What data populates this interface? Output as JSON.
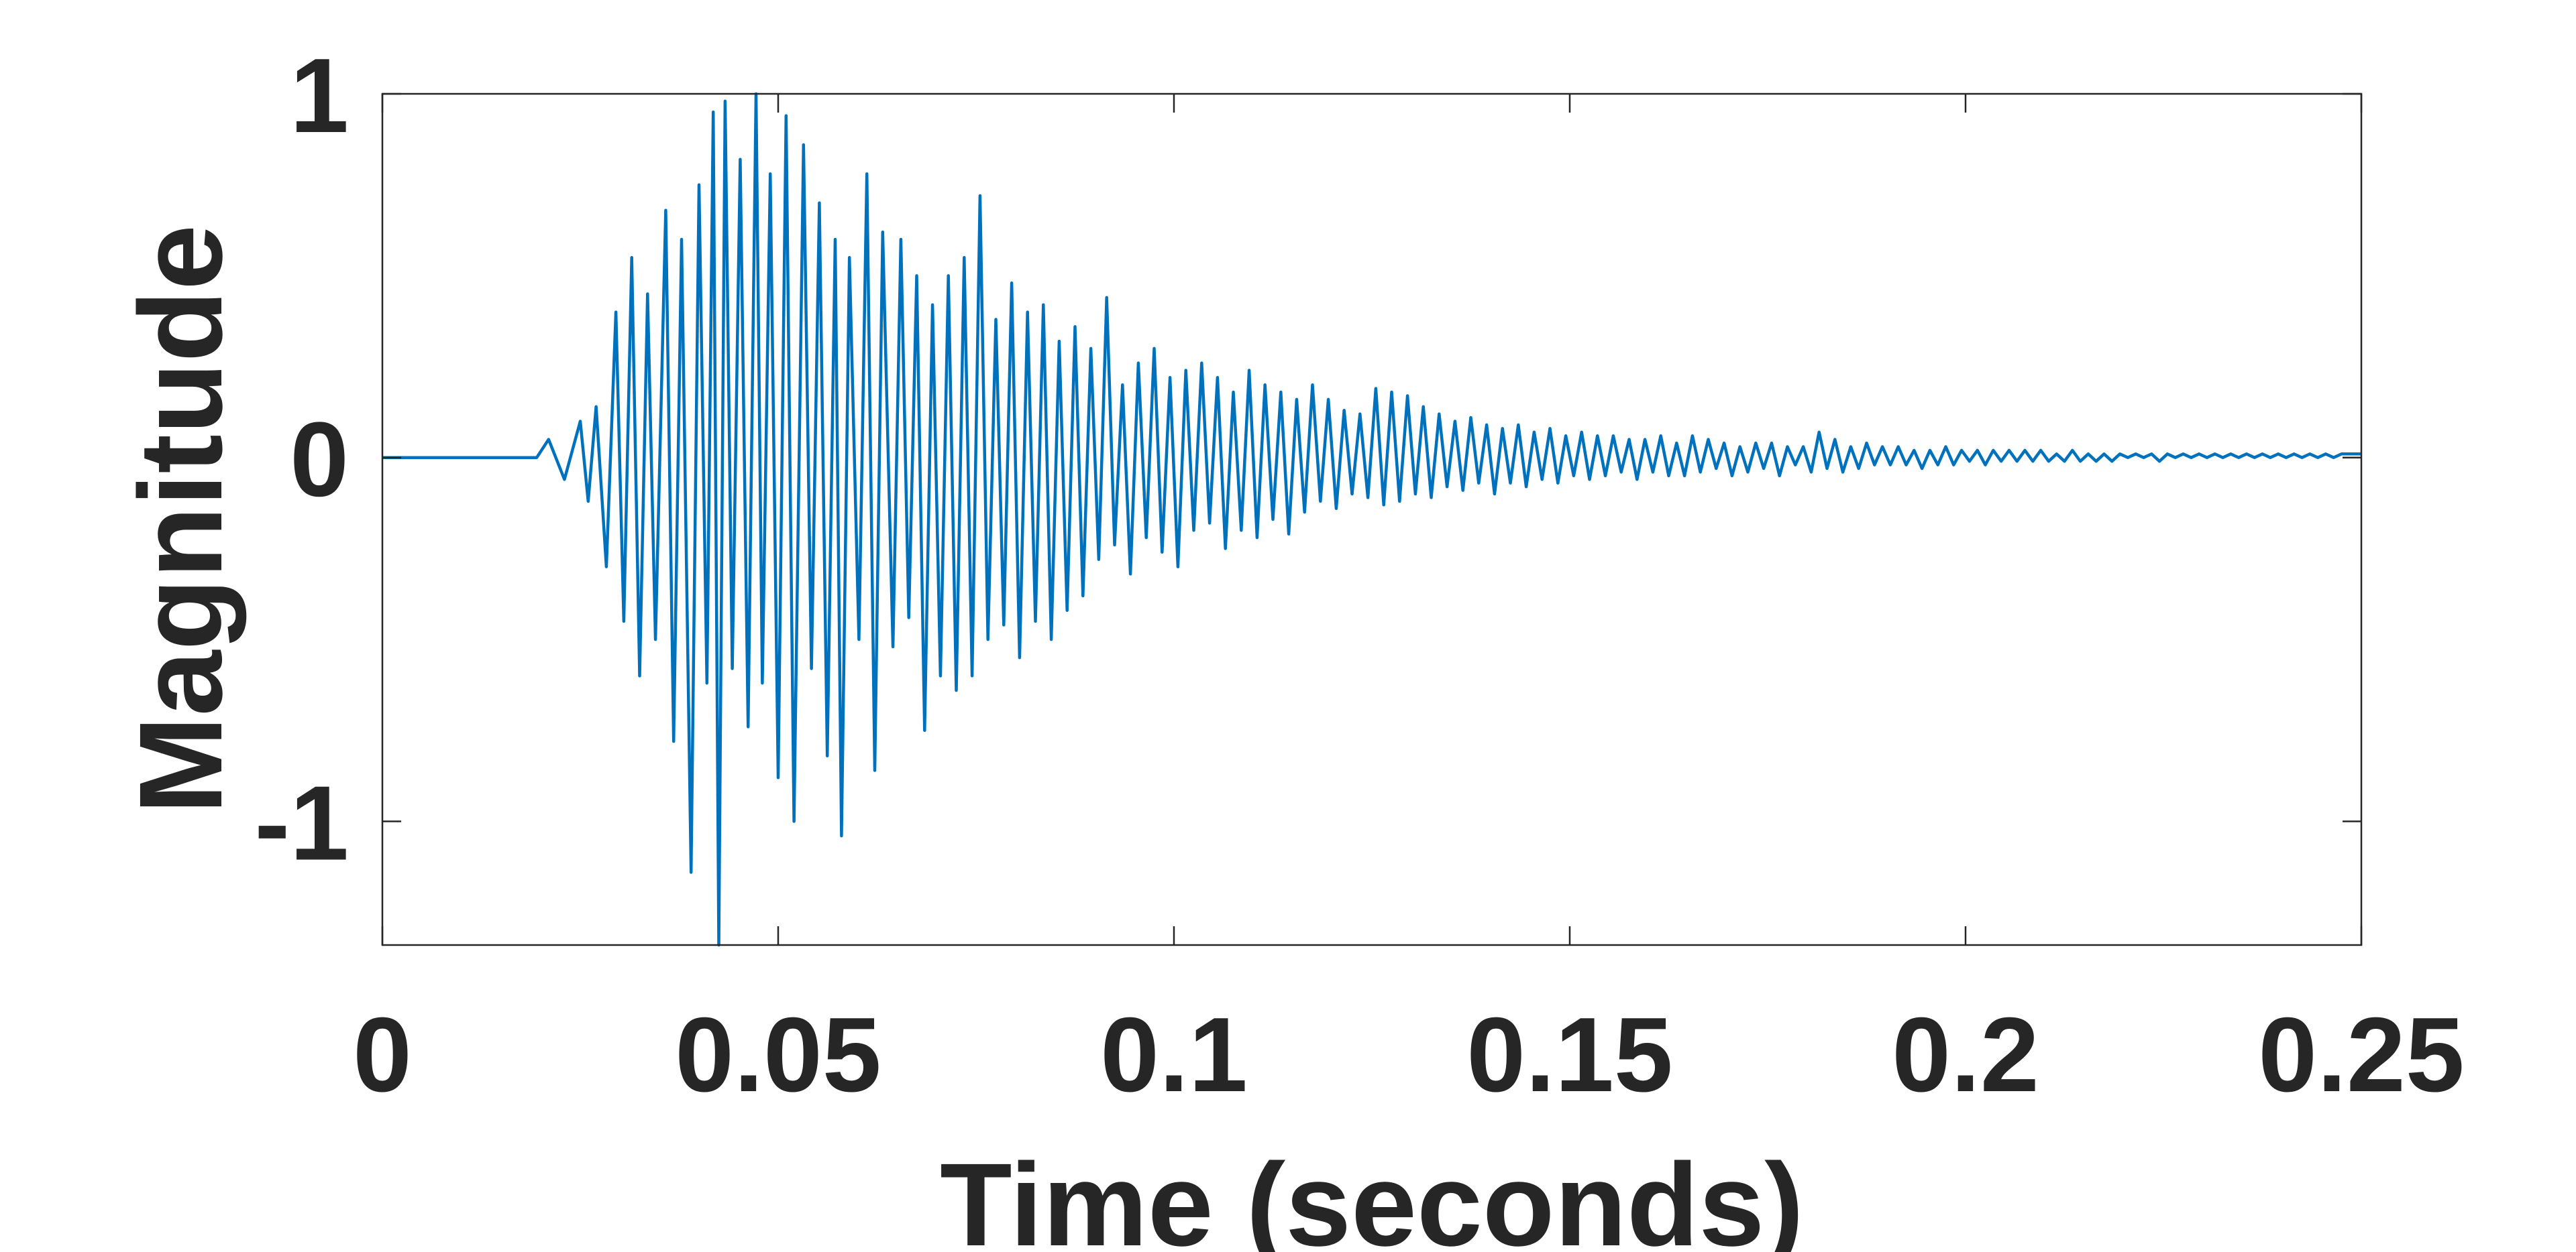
{
  "chart_data": {
    "type": "line",
    "title": "",
    "xlabel": "Time (seconds)",
    "ylabel": "Magnitude",
    "xlim": [
      0,
      0.25
    ],
    "ylim": [
      -1.34,
      1
    ],
    "grid": false,
    "legend": "none",
    "line_color": "#0072BD",
    "axis_color": "#262626",
    "box_color": "#262626",
    "x_ticks": [
      {
        "value": 0,
        "label": "0"
      },
      {
        "value": 0.05,
        "label": "0.05"
      },
      {
        "value": 0.1,
        "label": "0.1"
      },
      {
        "value": 0.15,
        "label": "0.15"
      },
      {
        "value": 0.2,
        "label": "0.2"
      },
      {
        "value": 0.25,
        "label": "0.25"
      }
    ],
    "y_ticks": [
      {
        "value": 1,
        "label": "1"
      },
      {
        "value": 0,
        "label": "0"
      },
      {
        "value": -1,
        "label": "-1"
      }
    ],
    "series": [
      {
        "x": [
          0,
          0.0195,
          0.021,
          0.023,
          0.025,
          0.026,
          0.027,
          0.0283,
          0.0295,
          0.0305,
          0.0315,
          0.0325,
          0.0335,
          0.0345,
          0.0358,
          0.0368,
          0.0378,
          0.039,
          0.04,
          0.041,
          0.0418,
          0.0425,
          0.0433,
          0.0442,
          0.0452,
          0.0462,
          0.0472,
          0.048,
          0.049,
          0.05,
          0.051,
          0.052,
          0.0532,
          0.0542,
          0.0552,
          0.0562,
          0.0572,
          0.058,
          0.059,
          0.0602,
          0.0612,
          0.0622,
          0.0632,
          0.0645,
          0.0655,
          0.0665,
          0.0675,
          0.0685,
          0.0695,
          0.0705,
          0.0715,
          0.0725,
          0.0735,
          0.0745,
          0.0755,
          0.0765,
          0.0775,
          0.0785,
          0.0795,
          0.0805,
          0.0815,
          0.0825,
          0.0835,
          0.0845,
          0.0855,
          0.0865,
          0.0875,
          0.0885,
          0.0895,
          0.0905,
          0.0915,
          0.0925,
          0.0935,
          0.0945,
          0.0955,
          0.0965,
          0.0975,
          0.0985,
          0.0995,
          0.1005,
          0.1015,
          0.1025,
          0.1035,
          0.1045,
          0.1055,
          0.1065,
          0.1075,
          0.1085,
          0.1095,
          0.1105,
          0.1115,
          0.1125,
          0.1135,
          0.1145,
          0.1155,
          0.1165,
          0.1175,
          0.1185,
          0.1195,
          0.1205,
          0.1215,
          0.1225,
          0.1235,
          0.1245,
          0.1255,
          0.1265,
          0.1275,
          0.1285,
          0.1295,
          0.1305,
          0.1315,
          0.1325,
          0.1335,
          0.1345,
          0.1355,
          0.1365,
          0.1375,
          0.1385,
          0.1395,
          0.1405,
          0.1415,
          0.1425,
          0.1435,
          0.1445,
          0.1455,
          0.1465,
          0.1475,
          0.1485,
          0.1495,
          0.1505,
          0.1515,
          0.1525,
          0.1535,
          0.1545,
          0.1555,
          0.1565,
          0.1575,
          0.1585,
          0.1595,
          0.1605,
          0.1615,
          0.1625,
          0.1635,
          0.1645,
          0.1655,
          0.1665,
          0.1675,
          0.1685,
          0.1695,
          0.1705,
          0.1715,
          0.1725,
          0.1735,
          0.1745,
          0.1755,
          0.1765,
          0.1775,
          0.1785,
          0.1795,
          0.1805,
          0.1815,
          0.1825,
          0.1835,
          0.1845,
          0.1855,
          0.1865,
          0.1875,
          0.1885,
          0.1895,
          0.1905,
          0.1915,
          0.1925,
          0.1935,
          0.1945,
          0.1955,
          0.1965,
          0.1975,
          0.1985,
          0.1995,
          0.2005,
          0.2015,
          0.2025,
          0.2035,
          0.2045,
          0.2055,
          0.2065,
          0.2075,
          0.2085,
          0.2095,
          0.2105,
          0.2115,
          0.2125,
          0.2135,
          0.2145,
          0.2155,
          0.2165,
          0.2175,
          0.2185,
          0.2195,
          0.2205,
          0.2215,
          0.2225,
          0.2235,
          0.2245,
          0.2255,
          0.2265,
          0.2275,
          0.2285,
          0.2295,
          0.2305,
          0.2315,
          0.2325,
          0.2335,
          0.2345,
          0.2355,
          0.2365,
          0.2375,
          0.2385,
          0.2395,
          0.2405,
          0.2415,
          0.2425,
          0.2435,
          0.2445,
          0.2455,
          0.2465,
          0.2475,
          0.2485,
          0.2495,
          0.25
        ],
        "y": [
          0,
          0,
          0.05,
          -0.06,
          0.1,
          -0.12,
          0.14,
          -0.3,
          0.4,
          -0.45,
          0.55,
          -0.6,
          0.45,
          -0.5,
          0.68,
          -0.78,
          0.6,
          -1.14,
          0.75,
          -0.62,
          0.95,
          -1.34,
          0.98,
          -0.58,
          0.82,
          -0.74,
          1.0,
          -0.62,
          0.78,
          -0.88,
          0.94,
          -1.0,
          0.86,
          -0.58,
          0.7,
          -0.82,
          0.6,
          -1.04,
          0.55,
          -0.5,
          0.78,
          -0.86,
          0.62,
          -0.52,
          0.6,
          -0.44,
          0.5,
          -0.75,
          0.42,
          -0.6,
          0.5,
          -0.64,
          0.55,
          -0.6,
          0.72,
          -0.5,
          0.38,
          -0.46,
          0.48,
          -0.55,
          0.4,
          -0.45,
          0.42,
          -0.5,
          0.32,
          -0.42,
          0.36,
          -0.38,
          0.3,
          -0.28,
          0.44,
          -0.24,
          0.2,
          -0.32,
          0.26,
          -0.22,
          0.3,
          -0.26,
          0.22,
          -0.3,
          0.24,
          -0.2,
          0.26,
          -0.18,
          0.22,
          -0.25,
          0.18,
          -0.2,
          0.24,
          -0.22,
          0.2,
          -0.17,
          0.18,
          -0.21,
          0.16,
          -0.15,
          0.2,
          -0.12,
          0.16,
          -0.14,
          0.13,
          -0.1,
          0.12,
          -0.11,
          0.19,
          -0.13,
          0.18,
          -0.12,
          0.17,
          -0.1,
          0.14,
          -0.11,
          0.12,
          -0.08,
          0.1,
          -0.09,
          0.11,
          -0.07,
          0.09,
          -0.1,
          0.08,
          -0.07,
          0.09,
          -0.08,
          0.07,
          -0.06,
          0.08,
          -0.07,
          0.06,
          -0.05,
          0.07,
          -0.06,
          0.06,
          -0.05,
          0.06,
          -0.04,
          0.05,
          -0.06,
          0.05,
          -0.04,
          0.06,
          -0.05,
          0.04,
          -0.05,
          0.06,
          -0.04,
          0.05,
          -0.03,
          0.04,
          -0.05,
          0.03,
          -0.04,
          0.04,
          -0.03,
          0.04,
          -0.05,
          0.03,
          -0.02,
          0.03,
          -0.04,
          0.07,
          -0.03,
          0.05,
          -0.04,
          0.03,
          -0.03,
          0.04,
          -0.02,
          0.03,
          -0.02,
          0.03,
          -0.02,
          0.02,
          -0.03,
          0.02,
          -0.02,
          0.03,
          -0.02,
          0.02,
          -0.01,
          0.02,
          -0.02,
          0.02,
          -0.01,
          0.02,
          -0.01,
          0.02,
          -0.01,
          0.02,
          -0.01,
          0.01,
          -0.01,
          0.02,
          -0.01,
          0.01,
          -0.01,
          0.01,
          -0.01,
          0.01,
          0.0,
          0.01,
          0.0,
          0.01,
          -0.01,
          0.01,
          0.0,
          0.01,
          0.0,
          0.01,
          0.0,
          0.01,
          0.0,
          0.01,
          0.0,
          0.01,
          0.0,
          0.01,
          0.0,
          0.01,
          0.0,
          0.01,
          0.0,
          0.01,
          0.0,
          0.01,
          0.0,
          0.01,
          0.01,
          0.01,
          0.01
        ]
      }
    ]
  }
}
